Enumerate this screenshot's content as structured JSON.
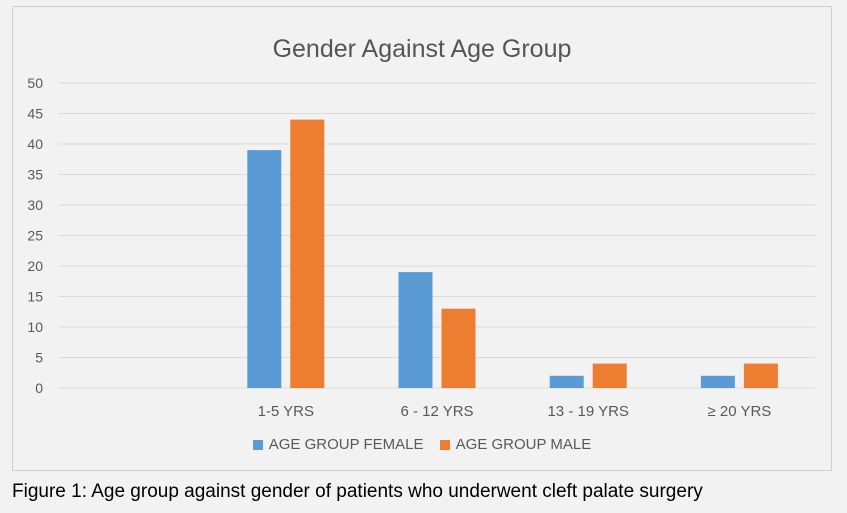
{
  "chart_data": {
    "type": "bar",
    "title": "Gender Against  Age Group",
    "categories": [
      "",
      "1-5 YRS",
      "6 - 12 YRS",
      "13 - 19 YRS",
      "≥ 20 YRS"
    ],
    "series": [
      {
        "name": "AGE GROUP FEMALE",
        "values": [
          null,
          39,
          19,
          2,
          2
        ],
        "color": "#5b9bd5"
      },
      {
        "name": "AGE GROUP MALE",
        "values": [
          null,
          44,
          13,
          4,
          4
        ],
        "color": "#ed7d31"
      }
    ],
    "y_ticks": [
      "0",
      "5",
      "10",
      "15",
      "20",
      "25",
      "30",
      "35",
      "40",
      "45",
      "50"
    ],
    "ylim": [
      0,
      50
    ],
    "grid": true,
    "legend_position": "bottom"
  },
  "caption": "Figure 1:  Age group against gender of patients who underwent cleft palate surgery"
}
